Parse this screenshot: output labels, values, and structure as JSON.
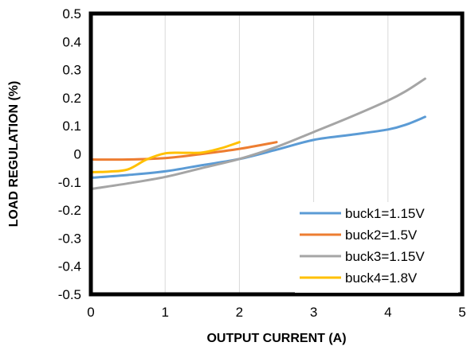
{
  "chart_data": {
    "type": "line",
    "title": "",
    "xlabel": "OUTPUT  CURRENT  (A)",
    "ylabel": "LOAD REGULATION  (%)",
    "xlim": [
      0,
      5
    ],
    "ylim": [
      -0.5,
      0.5
    ],
    "xticks": [
      "0",
      "1",
      "2",
      "3",
      "4",
      "5"
    ],
    "yticks": [
      "0.5",
      "0.4",
      "0.3",
      "0.2",
      "0.1",
      "0",
      "-0.1",
      "-0.2",
      "-0.3",
      "-0.4",
      "-0.5"
    ],
    "grid": "vertical",
    "legend_position": "bottom-right",
    "series": [
      {
        "name": "buck1=1.15V",
        "color": "#5b9bd5",
        "points": [
          [
            0,
            -0.085
          ],
          [
            0.5,
            -0.075
          ],
          [
            1.0,
            -0.062
          ],
          [
            1.5,
            -0.04
          ],
          [
            2.0,
            -0.018
          ],
          [
            2.5,
            0.015
          ],
          [
            3.0,
            0.05
          ],
          [
            3.5,
            0.068
          ],
          [
            4.0,
            0.087
          ],
          [
            4.25,
            0.105
          ],
          [
            4.5,
            0.132
          ]
        ]
      },
      {
        "name": "buck2=1.5V",
        "color": "#ed7d31",
        "points": [
          [
            0,
            -0.02
          ],
          [
            0.5,
            -0.02
          ],
          [
            1.0,
            -0.015
          ],
          [
            1.5,
            0.0
          ],
          [
            2.0,
            0.018
          ],
          [
            2.5,
            0.042
          ]
        ]
      },
      {
        "name": "buck3=1.15V",
        "color": "#a5a5a5",
        "points": [
          [
            0,
            -0.125
          ],
          [
            0.5,
            -0.105
          ],
          [
            1.0,
            -0.082
          ],
          [
            1.5,
            -0.05
          ],
          [
            2.0,
            -0.018
          ],
          [
            2.5,
            0.025
          ],
          [
            3.0,
            0.078
          ],
          [
            3.5,
            0.132
          ],
          [
            4.0,
            0.19
          ],
          [
            4.25,
            0.225
          ],
          [
            4.5,
            0.268
          ]
        ]
      },
      {
        "name": "buck4=1.8V",
        "color": "#ffc000",
        "points": [
          [
            0,
            -0.065
          ],
          [
            0.25,
            -0.063
          ],
          [
            0.5,
            -0.055
          ],
          [
            0.75,
            -0.02
          ],
          [
            1.0,
            0.002
          ],
          [
            1.25,
            0.004
          ],
          [
            1.5,
            0.005
          ],
          [
            1.75,
            0.02
          ],
          [
            2.0,
            0.042
          ]
        ]
      }
    ]
  }
}
